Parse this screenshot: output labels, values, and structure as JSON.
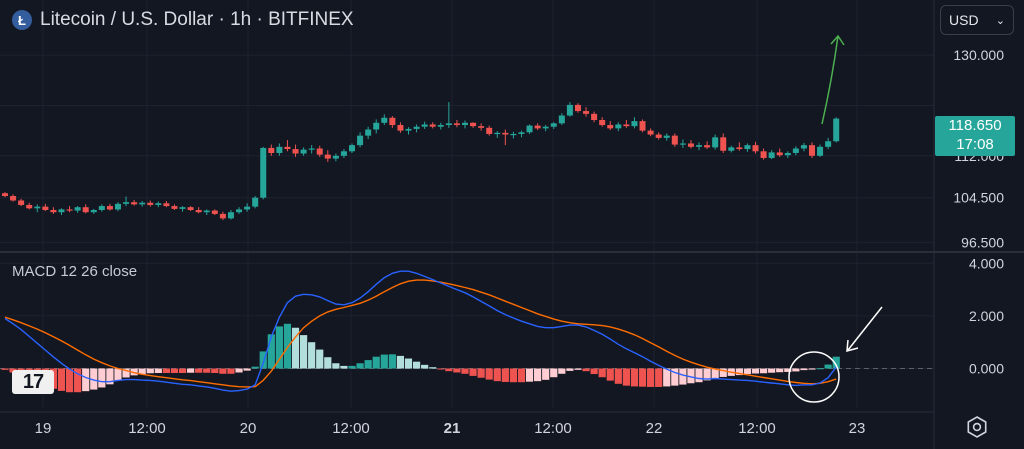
{
  "header": {
    "symbol_icon": "litecoin-icon",
    "title": "Litecoin / U.S. Dollar · 1h · BITFINEX"
  },
  "currency_select": {
    "value": "USD"
  },
  "price_tag": {
    "price": "118.650",
    "countdown": "17:08"
  },
  "macd": {
    "label": "MACD 12 26 close"
  },
  "logo_text": "17",
  "settings_icon": "gear-icon",
  "colors": {
    "background": "#131722",
    "up": "#26a69a",
    "down": "#ef5350",
    "macd_line": "#2962ff",
    "signal_line": "#ff6d00",
    "arrow": "#4caf50",
    "hist_up_strong": "#26a69a",
    "hist_up_weak": "#b2dfdb",
    "hist_down_strong": "#ef5350",
    "hist_down_weak": "#ffcdd2"
  },
  "chart_data": [
    {
      "type": "candlestick",
      "title": "Litecoin / U.S. Dollar · 1h · BITFINEX",
      "x_tick_labels": [
        "19",
        "12:00",
        "20",
        "12:00",
        "21",
        "12:00",
        "22",
        "12:00",
        "23"
      ],
      "y_tick_labels": [
        "96.500",
        "104.500",
        "112.000",
        "130.000"
      ],
      "y_range": [
        95.5,
        134.5
      ],
      "last_price": 118.65,
      "candles": [
        [
          105.3,
          105.5,
          104.6,
          104.8
        ],
        [
          104.8,
          105.1,
          103.8,
          104.0
        ],
        [
          104.0,
          104.3,
          103.0,
          103.2
        ],
        [
          103.2,
          103.6,
          102.4,
          102.6
        ],
        [
          102.6,
          103.3,
          101.9,
          102.9
        ],
        [
          102.9,
          103.4,
          102.1,
          102.3
        ],
        [
          102.3,
          102.8,
          101.6,
          101.9
        ],
        [
          101.9,
          102.6,
          101.4,
          102.4
        ],
        [
          102.4,
          103.0,
          101.9,
          102.2
        ],
        [
          102.2,
          103.0,
          101.8,
          102.8
        ],
        [
          102.8,
          103.3,
          101.7,
          101.9
        ],
        [
          101.9,
          102.5,
          101.6,
          102.3
        ],
        [
          102.3,
          103.3,
          102.0,
          103.0
        ],
        [
          103.0,
          103.4,
          102.2,
          102.4
        ],
        [
          102.4,
          103.7,
          102.1,
          103.4
        ],
        [
          103.4,
          104.7,
          103.0,
          103.7
        ],
        [
          103.7,
          104.1,
          103.1,
          103.3
        ],
        [
          103.3,
          103.9,
          102.9,
          103.6
        ],
        [
          103.6,
          104.0,
          102.9,
          103.2
        ],
        [
          103.2,
          103.8,
          102.8,
          103.5
        ],
        [
          103.5,
          103.9,
          102.8,
          103.0
        ],
        [
          103.0,
          103.3,
          102.3,
          102.5
        ],
        [
          102.5,
          103.0,
          102.0,
          102.8
        ],
        [
          102.8,
          103.0,
          102.1,
          102.3
        ],
        [
          102.3,
          102.8,
          101.7,
          101.9
        ],
        [
          101.9,
          102.4,
          101.4,
          102.2
        ],
        [
          102.2,
          102.4,
          101.4,
          101.6
        ],
        [
          101.6,
          102.0,
          100.5,
          100.8
        ],
        [
          100.8,
          102.3,
          100.6,
          101.9
        ],
        [
          101.9,
          102.8,
          101.6,
          102.4
        ],
        [
          102.4,
          103.5,
          102.0,
          102.9
        ],
        [
          102.9,
          104.8,
          102.6,
          104.5
        ],
        [
          104.5,
          113.6,
          104.2,
          113.4
        ],
        [
          113.4,
          114.0,
          112.0,
          112.5
        ],
        [
          112.5,
          114.2,
          112.0,
          113.6
        ],
        [
          113.6,
          114.8,
          112.8,
          113.2
        ],
        [
          113.2,
          114.0,
          111.8,
          112.4
        ],
        [
          112.4,
          113.5,
          112.0,
          113.1
        ],
        [
          113.1,
          113.9,
          112.4,
          113.3
        ],
        [
          113.3,
          113.8,
          111.8,
          112.2
        ],
        [
          112.2,
          113.0,
          110.9,
          111.5
        ],
        [
          111.5,
          112.4,
          111.0,
          112.0
        ],
        [
          112.0,
          113.2,
          111.6,
          112.8
        ],
        [
          112.8,
          114.2,
          112.5,
          113.9
        ],
        [
          113.9,
          116.2,
          113.5,
          115.6
        ],
        [
          115.6,
          117.2,
          115.0,
          116.7
        ],
        [
          116.7,
          118.5,
          116.0,
          117.9
        ],
        [
          117.9,
          119.4,
          117.5,
          118.8
        ],
        [
          118.8,
          119.1,
          117.0,
          117.5
        ],
        [
          117.5,
          118.0,
          116.1,
          116.5
        ],
        [
          116.5,
          117.1,
          115.8,
          116.8
        ],
        [
          116.8,
          117.6,
          116.2,
          117.2
        ],
        [
          117.2,
          118.1,
          116.8,
          117.6
        ],
        [
          117.6,
          118.0,
          116.9,
          117.2
        ],
        [
          117.2,
          117.9,
          116.7,
          117.5
        ],
        [
          117.5,
          121.6,
          117.0,
          117.8
        ],
        [
          117.8,
          118.4,
          117.1,
          117.5
        ],
        [
          117.5,
          118.3,
          116.9,
          117.9
        ],
        [
          117.9,
          118.0,
          117.0,
          117.3
        ],
        [
          117.3,
          117.8,
          116.5,
          117.0
        ],
        [
          117.0,
          117.4,
          115.6,
          115.9
        ],
        [
          115.9,
          116.4,
          115.2,
          116.1
        ],
        [
          116.1,
          116.7,
          113.9,
          115.8
        ],
        [
          115.8,
          116.3,
          115.1,
          115.9
        ],
        [
          115.9,
          116.5,
          115.3,
          116.2
        ],
        [
          116.2,
          117.6,
          115.9,
          117.4
        ],
        [
          117.4,
          117.8,
          116.6,
          116.9
        ],
        [
          116.9,
          117.5,
          116.4,
          117.2
        ],
        [
          117.2,
          118.0,
          116.8,
          117.8
        ],
        [
          117.8,
          119.6,
          117.5,
          119.2
        ],
        [
          119.2,
          121.6,
          119.0,
          121.1
        ],
        [
          121.1,
          121.4,
          119.7,
          120.0
        ],
        [
          120.0,
          120.7,
          119.0,
          119.5
        ],
        [
          119.5,
          119.9,
          118.0,
          118.4
        ],
        [
          118.4,
          118.9,
          117.2,
          117.5
        ],
        [
          117.5,
          118.2,
          116.6,
          116.9
        ],
        [
          116.9,
          118.0,
          116.4,
          117.6
        ],
        [
          117.6,
          118.4,
          117.0,
          117.3
        ],
        [
          117.3,
          118.9,
          116.9,
          118.2
        ],
        [
          118.2,
          118.5,
          116.2,
          116.5
        ],
        [
          116.5,
          116.9,
          115.5,
          115.8
        ],
        [
          115.8,
          116.2,
          114.9,
          115.2
        ],
        [
          115.2,
          116.0,
          114.7,
          115.6
        ],
        [
          115.6,
          116.0,
          113.6,
          114.0
        ],
        [
          114.0,
          114.9,
          113.4,
          114.2
        ],
        [
          114.2,
          114.8,
          113.3,
          113.6
        ],
        [
          113.6,
          114.4,
          113.0,
          113.9
        ],
        [
          113.9,
          114.6,
          113.2,
          113.5
        ],
        [
          113.5,
          115.8,
          113.1,
          115.3
        ],
        [
          115.3,
          116.0,
          112.5,
          112.9
        ],
        [
          112.9,
          113.8,
          112.6,
          113.5
        ],
        [
          113.5,
          114.4,
          112.9,
          113.2
        ],
        [
          113.2,
          114.2,
          112.7,
          113.9
        ],
        [
          113.9,
          114.5,
          112.4,
          112.8
        ],
        [
          112.8,
          113.3,
          111.3,
          111.6
        ],
        [
          111.6,
          113.0,
          111.4,
          112.6
        ],
        [
          112.6,
          113.3,
          111.8,
          112.1
        ],
        [
          112.1,
          112.8,
          111.6,
          112.5
        ],
        [
          112.5,
          113.7,
          112.1,
          113.3
        ],
        [
          113.3,
          114.3,
          112.8,
          113.9
        ],
        [
          113.9,
          114.4,
          111.6,
          112.0
        ],
        [
          112.0,
          114.0,
          111.8,
          113.6
        ],
        [
          113.6,
          115.2,
          113.2,
          114.6
        ],
        [
          114.6,
          118.9,
          114.4,
          118.65
        ]
      ]
    },
    {
      "type": "macd",
      "title": "MACD 12 26 close",
      "y_tick_labels": [
        "4.000",
        "2.000",
        "0.000"
      ],
      "y_range": [
        -1.5,
        4.2
      ],
      "series": [
        {
          "role": "macd",
          "values": [
            1.9,
            1.7,
            1.48,
            1.22,
            0.96,
            0.7,
            0.44,
            0.2,
            -0.02,
            -0.2,
            -0.34,
            -0.44,
            -0.5,
            -0.5,
            -0.45,
            -0.42,
            -0.42,
            -0.44,
            -0.45,
            -0.48,
            -0.52,
            -0.56,
            -0.6,
            -0.62,
            -0.66,
            -0.7,
            -0.75,
            -0.82,
            -0.86,
            -0.84,
            -0.78,
            -0.62,
            0.2,
            1.2,
            1.95,
            2.5,
            2.75,
            2.82,
            2.8,
            2.72,
            2.58,
            2.45,
            2.42,
            2.5,
            2.68,
            2.92,
            3.2,
            3.45,
            3.62,
            3.7,
            3.7,
            3.62,
            3.5,
            3.38,
            3.25,
            3.12,
            3.0,
            2.88,
            2.72,
            2.55,
            2.38,
            2.2,
            2.05,
            1.92,
            1.8,
            1.7,
            1.6,
            1.55,
            1.55,
            1.6,
            1.65,
            1.65,
            1.58,
            1.45,
            1.3,
            1.12,
            0.92,
            0.75,
            0.6,
            0.45,
            0.28,
            0.12,
            -0.02,
            -0.15,
            -0.25,
            -0.32,
            -0.38,
            -0.4,
            -0.38,
            -0.4,
            -0.42,
            -0.44,
            -0.45,
            -0.48,
            -0.52,
            -0.55,
            -0.58,
            -0.62,
            -0.64,
            -0.62,
            -0.62,
            -0.55,
            -0.35,
            0.05
          ]
        },
        {
          "role": "signal",
          "values": [
            1.95,
            1.85,
            1.74,
            1.62,
            1.5,
            1.36,
            1.21,
            1.05,
            0.88,
            0.7,
            0.52,
            0.36,
            0.22,
            0.1,
            0.0,
            -0.08,
            -0.16,
            -0.22,
            -0.27,
            -0.31,
            -0.35,
            -0.39,
            -0.43,
            -0.46,
            -0.5,
            -0.54,
            -0.58,
            -0.62,
            -0.66,
            -0.69,
            -0.7,
            -0.69,
            -0.45,
            -0.1,
            0.35,
            0.8,
            1.2,
            1.55,
            1.8,
            2.0,
            2.15,
            2.25,
            2.32,
            2.4,
            2.48,
            2.6,
            2.75,
            2.92,
            3.08,
            3.22,
            3.32,
            3.36,
            3.36,
            3.33,
            3.28,
            3.22,
            3.15,
            3.08,
            3.0,
            2.9,
            2.8,
            2.68,
            2.56,
            2.44,
            2.32,
            2.2,
            2.08,
            1.98,
            1.88,
            1.8,
            1.74,
            1.7,
            1.68,
            1.66,
            1.63,
            1.58,
            1.5,
            1.4,
            1.28,
            1.14,
            0.98,
            0.82,
            0.66,
            0.5,
            0.36,
            0.24,
            0.14,
            0.05,
            -0.02,
            -0.08,
            -0.14,
            -0.19,
            -0.24,
            -0.29,
            -0.34,
            -0.39,
            -0.44,
            -0.49,
            -0.53,
            -0.56,
            -0.58,
            -0.56,
            -0.5,
            -0.4
          ]
        }
      ],
      "histogram": [
        -0.05,
        -0.15,
        -0.26,
        -0.4,
        -0.54,
        -0.66,
        -0.77,
        -0.85,
        -0.9,
        -0.9,
        -0.86,
        -0.8,
        -0.72,
        -0.6,
        -0.45,
        -0.34,
        -0.26,
        -0.22,
        -0.18,
        -0.17,
        -0.17,
        -0.17,
        -0.17,
        -0.16,
        -0.16,
        -0.16,
        -0.17,
        -0.2,
        -0.2,
        -0.15,
        -0.08,
        0.07,
        0.65,
        1.3,
        1.6,
        1.7,
        1.55,
        1.27,
        1.0,
        0.72,
        0.43,
        0.2,
        0.1,
        0.1,
        0.2,
        0.32,
        0.45,
        0.53,
        0.54,
        0.48,
        0.38,
        0.26,
        0.14,
        0.05,
        -0.03,
        -0.1,
        -0.15,
        -0.2,
        -0.28,
        -0.35,
        -0.42,
        -0.48,
        -0.51,
        -0.52,
        -0.52,
        -0.5,
        -0.48,
        -0.43,
        -0.33,
        -0.2,
        -0.09,
        -0.05,
        -0.1,
        -0.21,
        -0.33,
        -0.46,
        -0.58,
        -0.65,
        -0.68,
        -0.69,
        -0.7,
        -0.7,
        -0.68,
        -0.65,
        -0.61,
        -0.56,
        -0.52,
        -0.45,
        -0.36,
        -0.32,
        -0.28,
        -0.25,
        -0.21,
        -0.19,
        -0.18,
        -0.16,
        -0.14,
        -0.13,
        -0.11,
        -0.06,
        -0.04,
        0.01,
        0.15,
        0.45
      ]
    }
  ]
}
